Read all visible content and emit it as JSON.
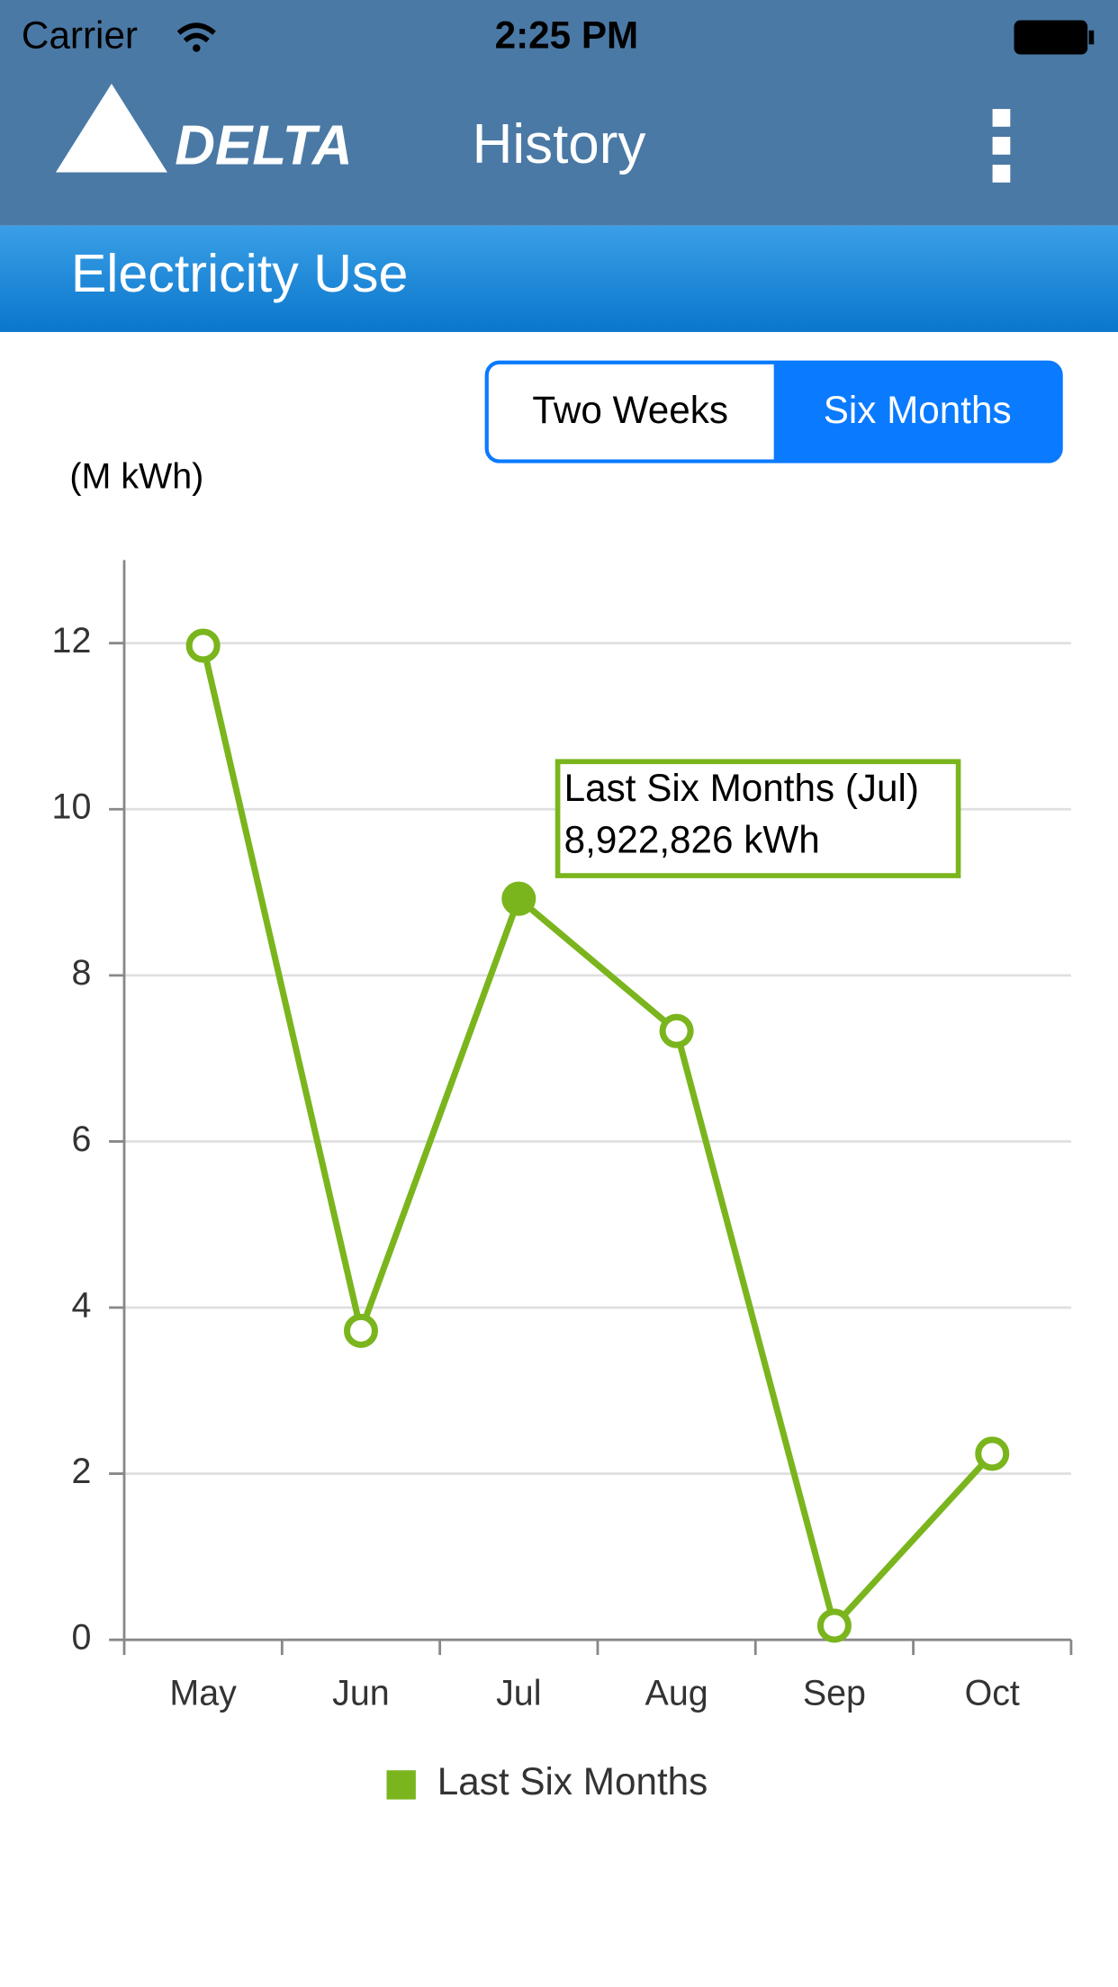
{
  "status_bar": {
    "carrier": "Carrier",
    "time": "2:25 PM"
  },
  "nav": {
    "logo": "DELTA",
    "title": "History"
  },
  "section": {
    "title": "Electricity Use"
  },
  "segments": {
    "items": [
      "Two Weeks",
      "Six Months"
    ],
    "selected": 1
  },
  "chart_data": {
    "type": "line",
    "y_label": "(M kWh)",
    "categories": [
      "May",
      "Jun",
      "Jul",
      "Aug",
      "Sep",
      "Oct"
    ],
    "series": [
      {
        "name": "Last Six Months",
        "color": "#7ab51d",
        "values": [
          11.97,
          3.72,
          8.922826,
          7.33,
          0.17,
          2.24
        ]
      }
    ],
    "ylim": [
      0,
      13
    ],
    "yticks": [
      0,
      2,
      4,
      6,
      8,
      10,
      12
    ],
    "grid": true,
    "legend": "bottom",
    "tooltip": {
      "index": 2,
      "lines": [
        "Last Six Months (Jul)",
        "8,922,826 kWh"
      ]
    }
  }
}
